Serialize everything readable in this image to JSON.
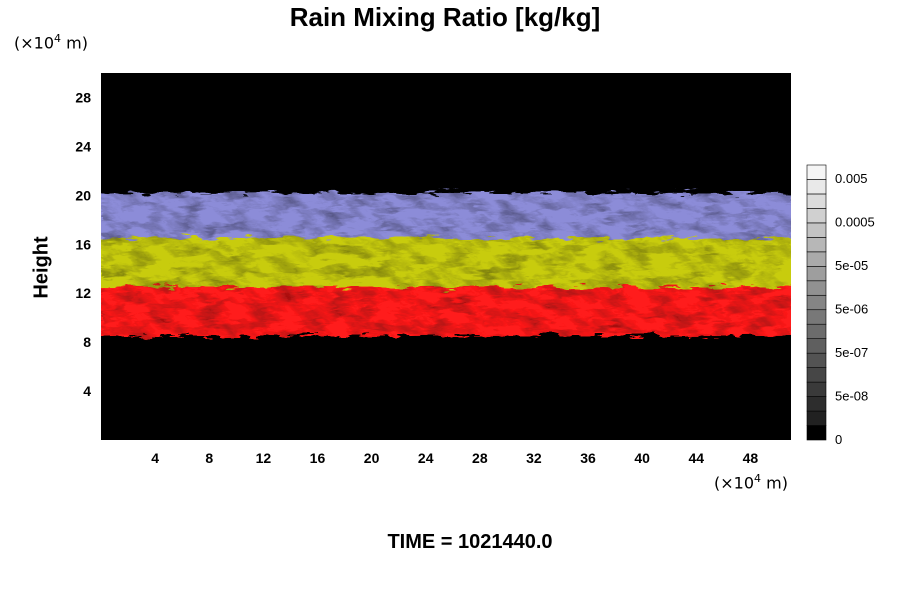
{
  "chart_data": {
    "type": "heatmap",
    "title": "Rain Mixing Ratio [kg/kg]",
    "ylabel": "Height",
    "y_unit": {
      "prefix": "(×10",
      "exp": "4",
      "suffix": " m)"
    },
    "x_unit": {
      "prefix": "(×10",
      "exp": "4",
      "suffix": " m)"
    },
    "xlim": [
      0,
      51
    ],
    "ylim": [
      0,
      30
    ],
    "x_ticks": [
      4,
      8,
      12,
      16,
      20,
      24,
      28,
      32,
      36,
      40,
      44,
      48
    ],
    "y_ticks": [
      4,
      8,
      12,
      16,
      20,
      24,
      28
    ],
    "bands": [
      {
        "color": "#ff1a1a",
        "y0": 8.5,
        "y1": 13
      },
      {
        "color": "#c8cc10",
        "y0": 12.5,
        "y1": 17
      },
      {
        "color": "#8c8cd8",
        "y0": 16.5,
        "y1": 20.2
      }
    ],
    "colorbar": {
      "labels": [
        "0.005",
        "0.0005",
        "5e-05",
        "5e-06",
        "5e-07",
        "5e-08",
        "0"
      ],
      "levels": 19
    },
    "time_label": "TIME = 1021440.0"
  }
}
